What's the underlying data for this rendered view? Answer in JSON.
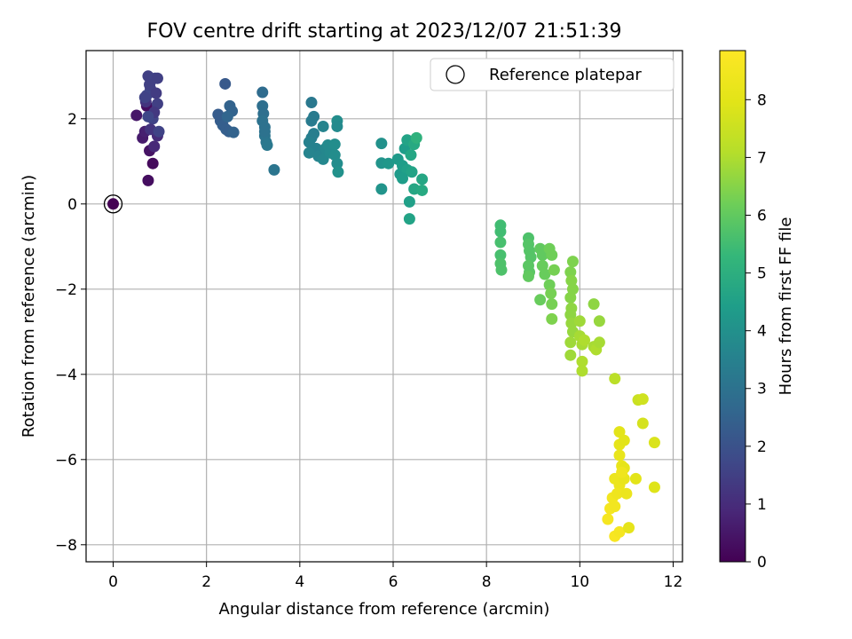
{
  "chart_data": {
    "type": "scatter",
    "title": "FOV centre drift starting at 2023/12/07 21:51:39",
    "xlabel": "Angular distance from reference (arcmin)",
    "ylabel": "Rotation from reference (arcmin)",
    "xlim": [
      -0.58,
      12.2
    ],
    "ylim": [
      -8.4,
      3.6
    ],
    "x_ticks": [
      0,
      2,
      4,
      6,
      8,
      10,
      12
    ],
    "y_ticks": [
      -8,
      -6,
      -4,
      -2,
      0,
      2
    ],
    "grid": true,
    "legend": {
      "position": "top-right",
      "entries": [
        "Reference platepar"
      ]
    },
    "colorbar": {
      "label": "Hours from first FF file",
      "range": [
        0,
        8.85
      ],
      "ticks": [
        0,
        1,
        2,
        3,
        4,
        5,
        6,
        7,
        8
      ],
      "colormap": "viridis"
    },
    "reference_point": {
      "x": 0,
      "y": 0
    },
    "series": [
      {
        "points": [
          {
            "x": 0.5,
            "y": 2.08,
            "c": 0.5
          },
          {
            "x": 0.72,
            "y": 2.3,
            "c": 0.3
          },
          {
            "x": 0.75,
            "y": 0.55,
            "c": 0.3
          },
          {
            "x": 0.85,
            "y": 0.95,
            "c": 0.2
          },
          {
            "x": 0.78,
            "y": 1.25,
            "c": 0.4
          },
          {
            "x": 0.63,
            "y": 1.55,
            "c": 0.6
          },
          {
            "x": 0.68,
            "y": 1.7,
            "c": 0.7
          },
          {
            "x": 0.88,
            "y": 1.35,
            "c": 0.9
          },
          {
            "x": 0.95,
            "y": 1.6,
            "c": 1.0
          },
          {
            "x": 0.7,
            "y": 2.4,
            "c": 1.2
          },
          {
            "x": 0.8,
            "y": 2.7,
            "c": 1.4
          },
          {
            "x": 0.75,
            "y": 3.0,
            "c": 1.5
          },
          {
            "x": 0.9,
            "y": 2.95,
            "c": 1.6
          },
          {
            "x": 0.72,
            "y": 2.55,
            "c": 1.7
          },
          {
            "x": 0.85,
            "y": 2.0,
            "c": 1.6
          },
          {
            "x": 0.95,
            "y": 2.35,
            "c": 1.5
          },
          {
            "x": 0.78,
            "y": 2.8,
            "c": 1.5
          },
          {
            "x": 0.88,
            "y": 2.15,
            "c": 1.3
          },
          {
            "x": 0.68,
            "y": 2.5,
            "c": 1.6
          },
          {
            "x": 0.8,
            "y": 1.75,
            "c": 1.2
          },
          {
            "x": 0.92,
            "y": 2.6,
            "c": 1.4
          },
          {
            "x": 0.98,
            "y": 1.7,
            "c": 1.6
          },
          {
            "x": 0.75,
            "y": 2.05,
            "c": 1.7
          },
          {
            "x": 0.95,
            "y": 2.95,
            "c": 1.5
          },
          {
            "x": 2.4,
            "y": 2.82,
            "c": 2.2
          },
          {
            "x": 2.25,
            "y": 2.1,
            "c": 2.3
          },
          {
            "x": 2.3,
            "y": 1.95,
            "c": 2.3
          },
          {
            "x": 2.35,
            "y": 1.85,
            "c": 2.4
          },
          {
            "x": 2.42,
            "y": 1.75,
            "c": 2.4
          },
          {
            "x": 2.5,
            "y": 2.3,
            "c": 2.5
          },
          {
            "x": 2.55,
            "y": 2.18,
            "c": 2.5
          },
          {
            "x": 2.48,
            "y": 1.7,
            "c": 2.4
          },
          {
            "x": 2.58,
            "y": 1.68,
            "c": 2.5
          },
          {
            "x": 2.45,
            "y": 2.05,
            "c": 2.6
          },
          {
            "x": 3.2,
            "y": 2.62,
            "c": 2.8
          },
          {
            "x": 3.2,
            "y": 2.3,
            "c": 2.9
          },
          {
            "x": 3.22,
            "y": 2.12,
            "c": 2.9
          },
          {
            "x": 3.2,
            "y": 1.95,
            "c": 3.0
          },
          {
            "x": 3.25,
            "y": 1.8,
            "c": 3.0
          },
          {
            "x": 3.25,
            "y": 1.6,
            "c": 3.1
          },
          {
            "x": 3.28,
            "y": 1.45,
            "c": 3.1
          },
          {
            "x": 3.3,
            "y": 1.38,
            "c": 3.2
          },
          {
            "x": 3.45,
            "y": 0.8,
            "c": 3.1
          },
          {
            "x": 3.25,
            "y": 1.7,
            "c": 3.0
          },
          {
            "x": 4.25,
            "y": 2.38,
            "c": 3.2
          },
          {
            "x": 4.3,
            "y": 2.05,
            "c": 3.3
          },
          {
            "x": 4.25,
            "y": 1.95,
            "c": 3.3
          },
          {
            "x": 4.3,
            "y": 1.65,
            "c": 3.4
          },
          {
            "x": 4.25,
            "y": 1.55,
            "c": 3.4
          },
          {
            "x": 4.2,
            "y": 1.45,
            "c": 3.5
          },
          {
            "x": 4.35,
            "y": 1.3,
            "c": 3.5
          },
          {
            "x": 4.2,
            "y": 1.2,
            "c": 3.6
          },
          {
            "x": 4.4,
            "y": 1.12,
            "c": 3.6
          },
          {
            "x": 4.5,
            "y": 1.05,
            "c": 3.7
          },
          {
            "x": 4.55,
            "y": 1.3,
            "c": 3.7
          },
          {
            "x": 4.5,
            "y": 1.82,
            "c": 3.6
          },
          {
            "x": 4.6,
            "y": 1.38,
            "c": 3.8
          },
          {
            "x": 4.65,
            "y": 1.2,
            "c": 3.8
          },
          {
            "x": 4.75,
            "y": 1.4,
            "c": 3.9
          },
          {
            "x": 4.8,
            "y": 1.95,
            "c": 3.9
          },
          {
            "x": 4.8,
            "y": 1.82,
            "c": 3.8
          },
          {
            "x": 4.8,
            "y": 0.95,
            "c": 3.9
          },
          {
            "x": 4.82,
            "y": 0.75,
            "c": 4.0
          },
          {
            "x": 4.75,
            "y": 1.15,
            "c": 3.9
          },
          {
            "x": 5.75,
            "y": 1.42,
            "c": 4.0
          },
          {
            "x": 5.75,
            "y": 0.96,
            "c": 4.1
          },
          {
            "x": 5.75,
            "y": 0.35,
            "c": 4.1
          },
          {
            "x": 5.9,
            "y": 0.95,
            "c": 4.2
          },
          {
            "x": 6.1,
            "y": 1.05,
            "c": 4.3
          },
          {
            "x": 6.15,
            "y": 0.7,
            "c": 4.3
          },
          {
            "x": 6.2,
            "y": 0.9,
            "c": 4.4
          },
          {
            "x": 6.25,
            "y": 1.3,
            "c": 4.4
          },
          {
            "x": 6.3,
            "y": 0.8,
            "c": 4.5
          },
          {
            "x": 6.3,
            "y": 1.5,
            "c": 4.6
          },
          {
            "x": 6.35,
            "y": 0.05,
            "c": 4.5
          },
          {
            "x": 6.35,
            "y": -0.35,
            "c": 4.6
          },
          {
            "x": 6.4,
            "y": 0.75,
            "c": 4.6
          },
          {
            "x": 6.45,
            "y": 1.4,
            "c": 4.8
          },
          {
            "x": 6.5,
            "y": 1.55,
            "c": 5.1
          },
          {
            "x": 6.45,
            "y": 0.35,
            "c": 4.7
          },
          {
            "x": 6.62,
            "y": 0.58,
            "c": 4.7
          },
          {
            "x": 6.62,
            "y": 0.32,
            "c": 4.8
          },
          {
            "x": 6.2,
            "y": 0.6,
            "c": 4.4
          },
          {
            "x": 6.38,
            "y": 1.15,
            "c": 4.7
          },
          {
            "x": 8.3,
            "y": -0.5,
            "c": 5.5
          },
          {
            "x": 8.3,
            "y": -0.65,
            "c": 5.5
          },
          {
            "x": 8.3,
            "y": -0.9,
            "c": 5.6
          },
          {
            "x": 8.3,
            "y": -1.2,
            "c": 5.6
          },
          {
            "x": 8.3,
            "y": -1.4,
            "c": 5.7
          },
          {
            "x": 8.32,
            "y": -1.55,
            "c": 5.7
          },
          {
            "x": 8.9,
            "y": -0.8,
            "c": 5.7
          },
          {
            "x": 8.9,
            "y": -0.95,
            "c": 5.8
          },
          {
            "x": 8.92,
            "y": -1.1,
            "c": 5.8
          },
          {
            "x": 8.95,
            "y": -1.25,
            "c": 5.8
          },
          {
            "x": 8.9,
            "y": -1.45,
            "c": 5.9
          },
          {
            "x": 8.92,
            "y": -1.6,
            "c": 5.9
          },
          {
            "x": 8.9,
            "y": -1.7,
            "c": 6.0
          },
          {
            "x": 9.15,
            "y": -1.05,
            "c": 6.0
          },
          {
            "x": 9.2,
            "y": -1.2,
            "c": 6.0
          },
          {
            "x": 9.2,
            "y": -1.45,
            "c": 6.1
          },
          {
            "x": 9.25,
            "y": -1.65,
            "c": 6.1
          },
          {
            "x": 9.15,
            "y": -2.25,
            "c": 6.1
          },
          {
            "x": 9.35,
            "y": -1.05,
            "c": 6.2
          },
          {
            "x": 9.4,
            "y": -1.2,
            "c": 6.2
          },
          {
            "x": 9.35,
            "y": -1.9,
            "c": 6.2
          },
          {
            "x": 9.38,
            "y": -2.1,
            "c": 6.3
          },
          {
            "x": 9.4,
            "y": -2.35,
            "c": 6.3
          },
          {
            "x": 9.4,
            "y": -2.7,
            "c": 6.4
          },
          {
            "x": 9.45,
            "y": -1.55,
            "c": 6.3
          },
          {
            "x": 9.8,
            "y": -1.6,
            "c": 6.4
          },
          {
            "x": 9.85,
            "y": -1.35,
            "c": 6.4
          },
          {
            "x": 9.82,
            "y": -1.8,
            "c": 6.5
          },
          {
            "x": 9.85,
            "y": -2.0,
            "c": 6.5
          },
          {
            "x": 9.8,
            "y": -2.2,
            "c": 6.5
          },
          {
            "x": 9.82,
            "y": -2.45,
            "c": 6.6
          },
          {
            "x": 9.8,
            "y": -2.6,
            "c": 6.6
          },
          {
            "x": 9.82,
            "y": -2.8,
            "c": 6.7
          },
          {
            "x": 9.85,
            "y": -3.0,
            "c": 6.7
          },
          {
            "x": 9.8,
            "y": -3.25,
            "c": 6.8
          },
          {
            "x": 9.8,
            "y": -3.55,
            "c": 6.8
          },
          {
            "x": 10.0,
            "y": -2.75,
            "c": 6.8
          },
          {
            "x": 10.0,
            "y": -3.1,
            "c": 6.9
          },
          {
            "x": 10.05,
            "y": -3.3,
            "c": 6.9
          },
          {
            "x": 10.05,
            "y": -3.7,
            "c": 7.0
          },
          {
            "x": 10.05,
            "y": -3.92,
            "c": 7.0
          },
          {
            "x": 10.3,
            "y": -2.35,
            "c": 6.6
          },
          {
            "x": 10.3,
            "y": -3.35,
            "c": 6.9
          },
          {
            "x": 10.35,
            "y": -3.42,
            "c": 7.0
          },
          {
            "x": 10.42,
            "y": -2.75,
            "c": 6.7
          },
          {
            "x": 10.42,
            "y": -3.25,
            "c": 6.9
          },
          {
            "x": 10.1,
            "y": -3.2,
            "c": 7.0
          },
          {
            "x": 10.75,
            "y": -4.1,
            "c": 7.2
          },
          {
            "x": 11.25,
            "y": -4.6,
            "c": 7.5
          },
          {
            "x": 11.35,
            "y": -4.58,
            "c": 7.6
          },
          {
            "x": 11.35,
            "y": -5.15,
            "c": 7.7
          },
          {
            "x": 11.6,
            "y": -5.6,
            "c": 7.8
          },
          {
            "x": 11.6,
            "y": -6.65,
            "c": 7.9
          },
          {
            "x": 10.85,
            "y": -5.35,
            "c": 8.0
          },
          {
            "x": 10.85,
            "y": -5.65,
            "c": 8.1
          },
          {
            "x": 10.95,
            "y": -5.55,
            "c": 8.0
          },
          {
            "x": 10.85,
            "y": -5.9,
            "c": 8.2
          },
          {
            "x": 10.9,
            "y": -6.15,
            "c": 8.2
          },
          {
            "x": 10.95,
            "y": -6.2,
            "c": 8.1
          },
          {
            "x": 10.75,
            "y": -6.45,
            "c": 8.3
          },
          {
            "x": 10.85,
            "y": -6.6,
            "c": 8.3
          },
          {
            "x": 10.95,
            "y": -6.45,
            "c": 8.2
          },
          {
            "x": 11.2,
            "y": -6.45,
            "c": 8.0
          },
          {
            "x": 10.7,
            "y": -6.9,
            "c": 8.5
          },
          {
            "x": 10.8,
            "y": -6.8,
            "c": 8.4
          },
          {
            "x": 11.0,
            "y": -6.8,
            "c": 8.3
          },
          {
            "x": 10.65,
            "y": -7.15,
            "c": 8.6
          },
          {
            "x": 10.75,
            "y": -7.1,
            "c": 8.5
          },
          {
            "x": 10.6,
            "y": -7.4,
            "c": 8.6
          },
          {
            "x": 10.75,
            "y": -7.8,
            "c": 8.7
          },
          {
            "x": 10.85,
            "y": -7.7,
            "c": 8.6
          },
          {
            "x": 11.05,
            "y": -7.6,
            "c": 8.1
          },
          {
            "x": 10.9,
            "y": -6.3,
            "c": 8.4
          }
        ]
      }
    ]
  }
}
